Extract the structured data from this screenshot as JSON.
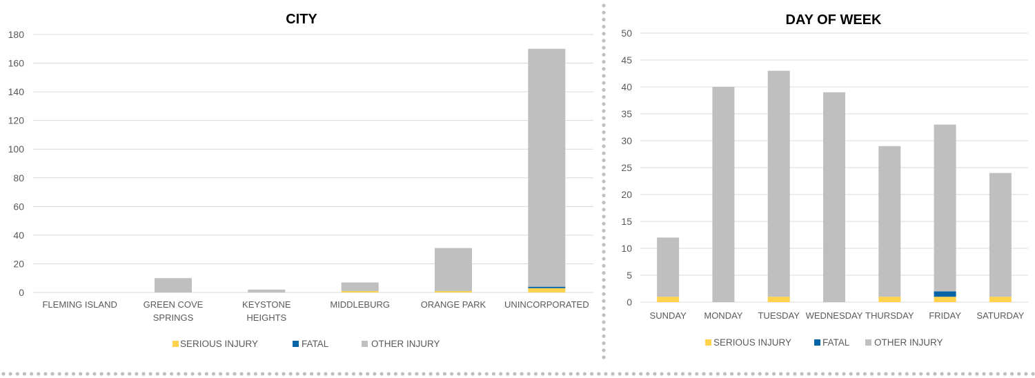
{
  "legend_labels": [
    "SERIOUS INJURY",
    "FATAL",
    "OTHER INJURY"
  ],
  "colors": {
    "serious": "#FFD34E",
    "fatal": "#0563A8",
    "other": "#BFBFBF",
    "grid": "#D9D9D9",
    "text": "#595959",
    "title": "#000000",
    "dots": "#BFBFBF"
  },
  "chart_data": [
    {
      "type": "bar",
      "stacked": true,
      "title": "CITY",
      "categories": [
        "FLEMING ISLAND",
        "GREEN COVE SPRINGS",
        "KEYSTONE HEIGHTS",
        "MIDDLEBURG",
        "ORANGE PARK",
        "UNINCORPORATED"
      ],
      "ylim": [
        0,
        180
      ],
      "yticks": [
        "0",
        "20",
        "40",
        "60",
        "80",
        "100",
        "120",
        "140",
        "160",
        "180"
      ],
      "grid": true,
      "legend_position": "bottom",
      "series": [
        {
          "name": "SERIOUS INJURY",
          "values": [
            0,
            0,
            0,
            1,
            1,
            3
          ]
        },
        {
          "name": "FATAL",
          "values": [
            0,
            0,
            0,
            0,
            0,
            1
          ]
        },
        {
          "name": "OTHER INJURY",
          "values": [
            0,
            10,
            2,
            6,
            30,
            166
          ]
        }
      ]
    },
    {
      "type": "bar",
      "stacked": true,
      "title": "DAY OF WEEK",
      "categories": [
        "SUNDAY",
        "MONDAY",
        "TUESDAY",
        "WEDNESDAY",
        "THURSDAY",
        "FRIDAY",
        "SATURDAY"
      ],
      "ylim": [
        0,
        50
      ],
      "yticks": [
        "0",
        "5",
        "10",
        "15",
        "20",
        "25",
        "30",
        "35",
        "40",
        "45",
        "50"
      ],
      "grid": true,
      "legend_position": "bottom",
      "series": [
        {
          "name": "SERIOUS INJURY",
          "values": [
            1,
            0,
            1,
            0,
            1,
            1,
            1
          ]
        },
        {
          "name": "FATAL",
          "values": [
            0,
            0,
            0,
            0,
            0,
            1,
            0
          ]
        },
        {
          "name": "OTHER INJURY",
          "values": [
            11,
            40,
            42,
            39,
            28,
            31,
            23
          ]
        }
      ]
    }
  ]
}
